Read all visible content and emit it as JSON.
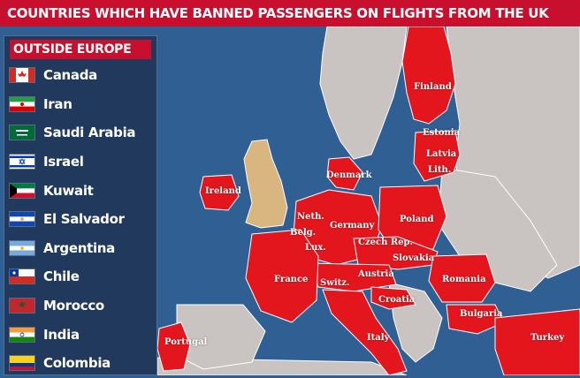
{
  "title": "COUNTRIES WHICH HAVE BANNED PASSENGERS ON FLIGHTS FROM THE UK",
  "legend": {
    "header": "OUTSIDE EUROPE",
    "countries": [
      {
        "name": "Canada",
        "flag": "canada-flag-icon"
      },
      {
        "name": "Iran",
        "flag": "iran-flag-icon"
      },
      {
        "name": "Saudi Arabia",
        "flag": "saudi-arabia-flag-icon"
      },
      {
        "name": "Israel",
        "flag": "israel-flag-icon"
      },
      {
        "name": "Kuwait",
        "flag": "kuwait-flag-icon"
      },
      {
        "name": "El Salvador",
        "flag": "el-salvador-flag-icon"
      },
      {
        "name": "Argentina",
        "flag": "argentina-flag-icon"
      },
      {
        "name": "Chile",
        "flag": "chile-flag-icon"
      },
      {
        "name": "Morocco",
        "flag": "morocco-flag-icon"
      },
      {
        "name": "India",
        "flag": "india-flag-icon"
      },
      {
        "name": "Colombia",
        "flag": "colombia-flag-icon"
      }
    ]
  },
  "map_labels": {
    "finland": "Finland",
    "estonia": "Estonia",
    "latvia": "Latvia",
    "lithuania": "Lith.",
    "denmark": "Denmark",
    "ireland": "Ireland",
    "netherlands": "Neth.",
    "belgium": "Belg.",
    "luxembourg": "Lux.",
    "germany": "Germany",
    "poland": "Poland",
    "czech": "Czech Rep.",
    "slovakia": "Slovakia",
    "austria": "Austria",
    "switzerland": "Switz.",
    "france": "France",
    "romania": "Romania",
    "croatia": "Croatia",
    "bulgaria": "Bulgaria",
    "italy": "Italy",
    "portugal": "Portugal",
    "turkey": "Turkey"
  },
  "colors": {
    "sea": "#2f5f93",
    "banned": "#e3161d",
    "neutral": "#c9c3c1",
    "uk": "#d9b580",
    "border": "#ffffff"
  }
}
